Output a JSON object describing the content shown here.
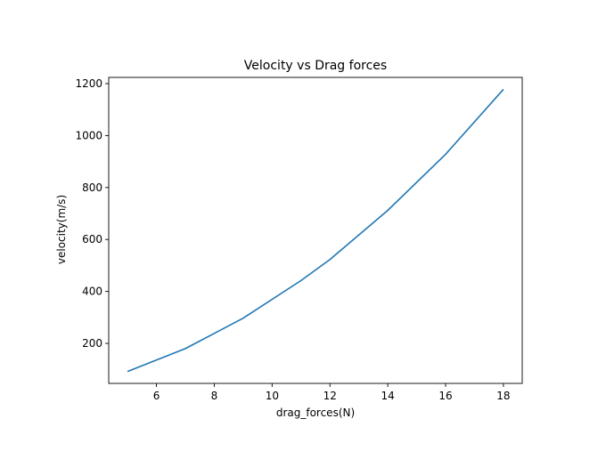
{
  "chart_data": {
    "type": "line",
    "title": "Velocity vs Drag forces",
    "xlabel": "drag_forces(N)",
    "ylabel": "velocity(m/s)",
    "xlim": [
      4.35,
      18.65
    ],
    "ylim": [
      46,
      1224
    ],
    "xticks": [
      6,
      8,
      10,
      12,
      14,
      16,
      18
    ],
    "yticks": [
      200,
      400,
      600,
      800,
      1000,
      1200
    ],
    "grid": false,
    "legend": "none",
    "series": [
      {
        "color": "#1f77b4",
        "x": [
          5,
          7,
          9,
          11,
          12,
          14,
          16,
          18
        ],
        "y": [
          92,
          180,
          297,
          442,
          523,
          712,
          928,
          1178
        ]
      }
    ]
  }
}
